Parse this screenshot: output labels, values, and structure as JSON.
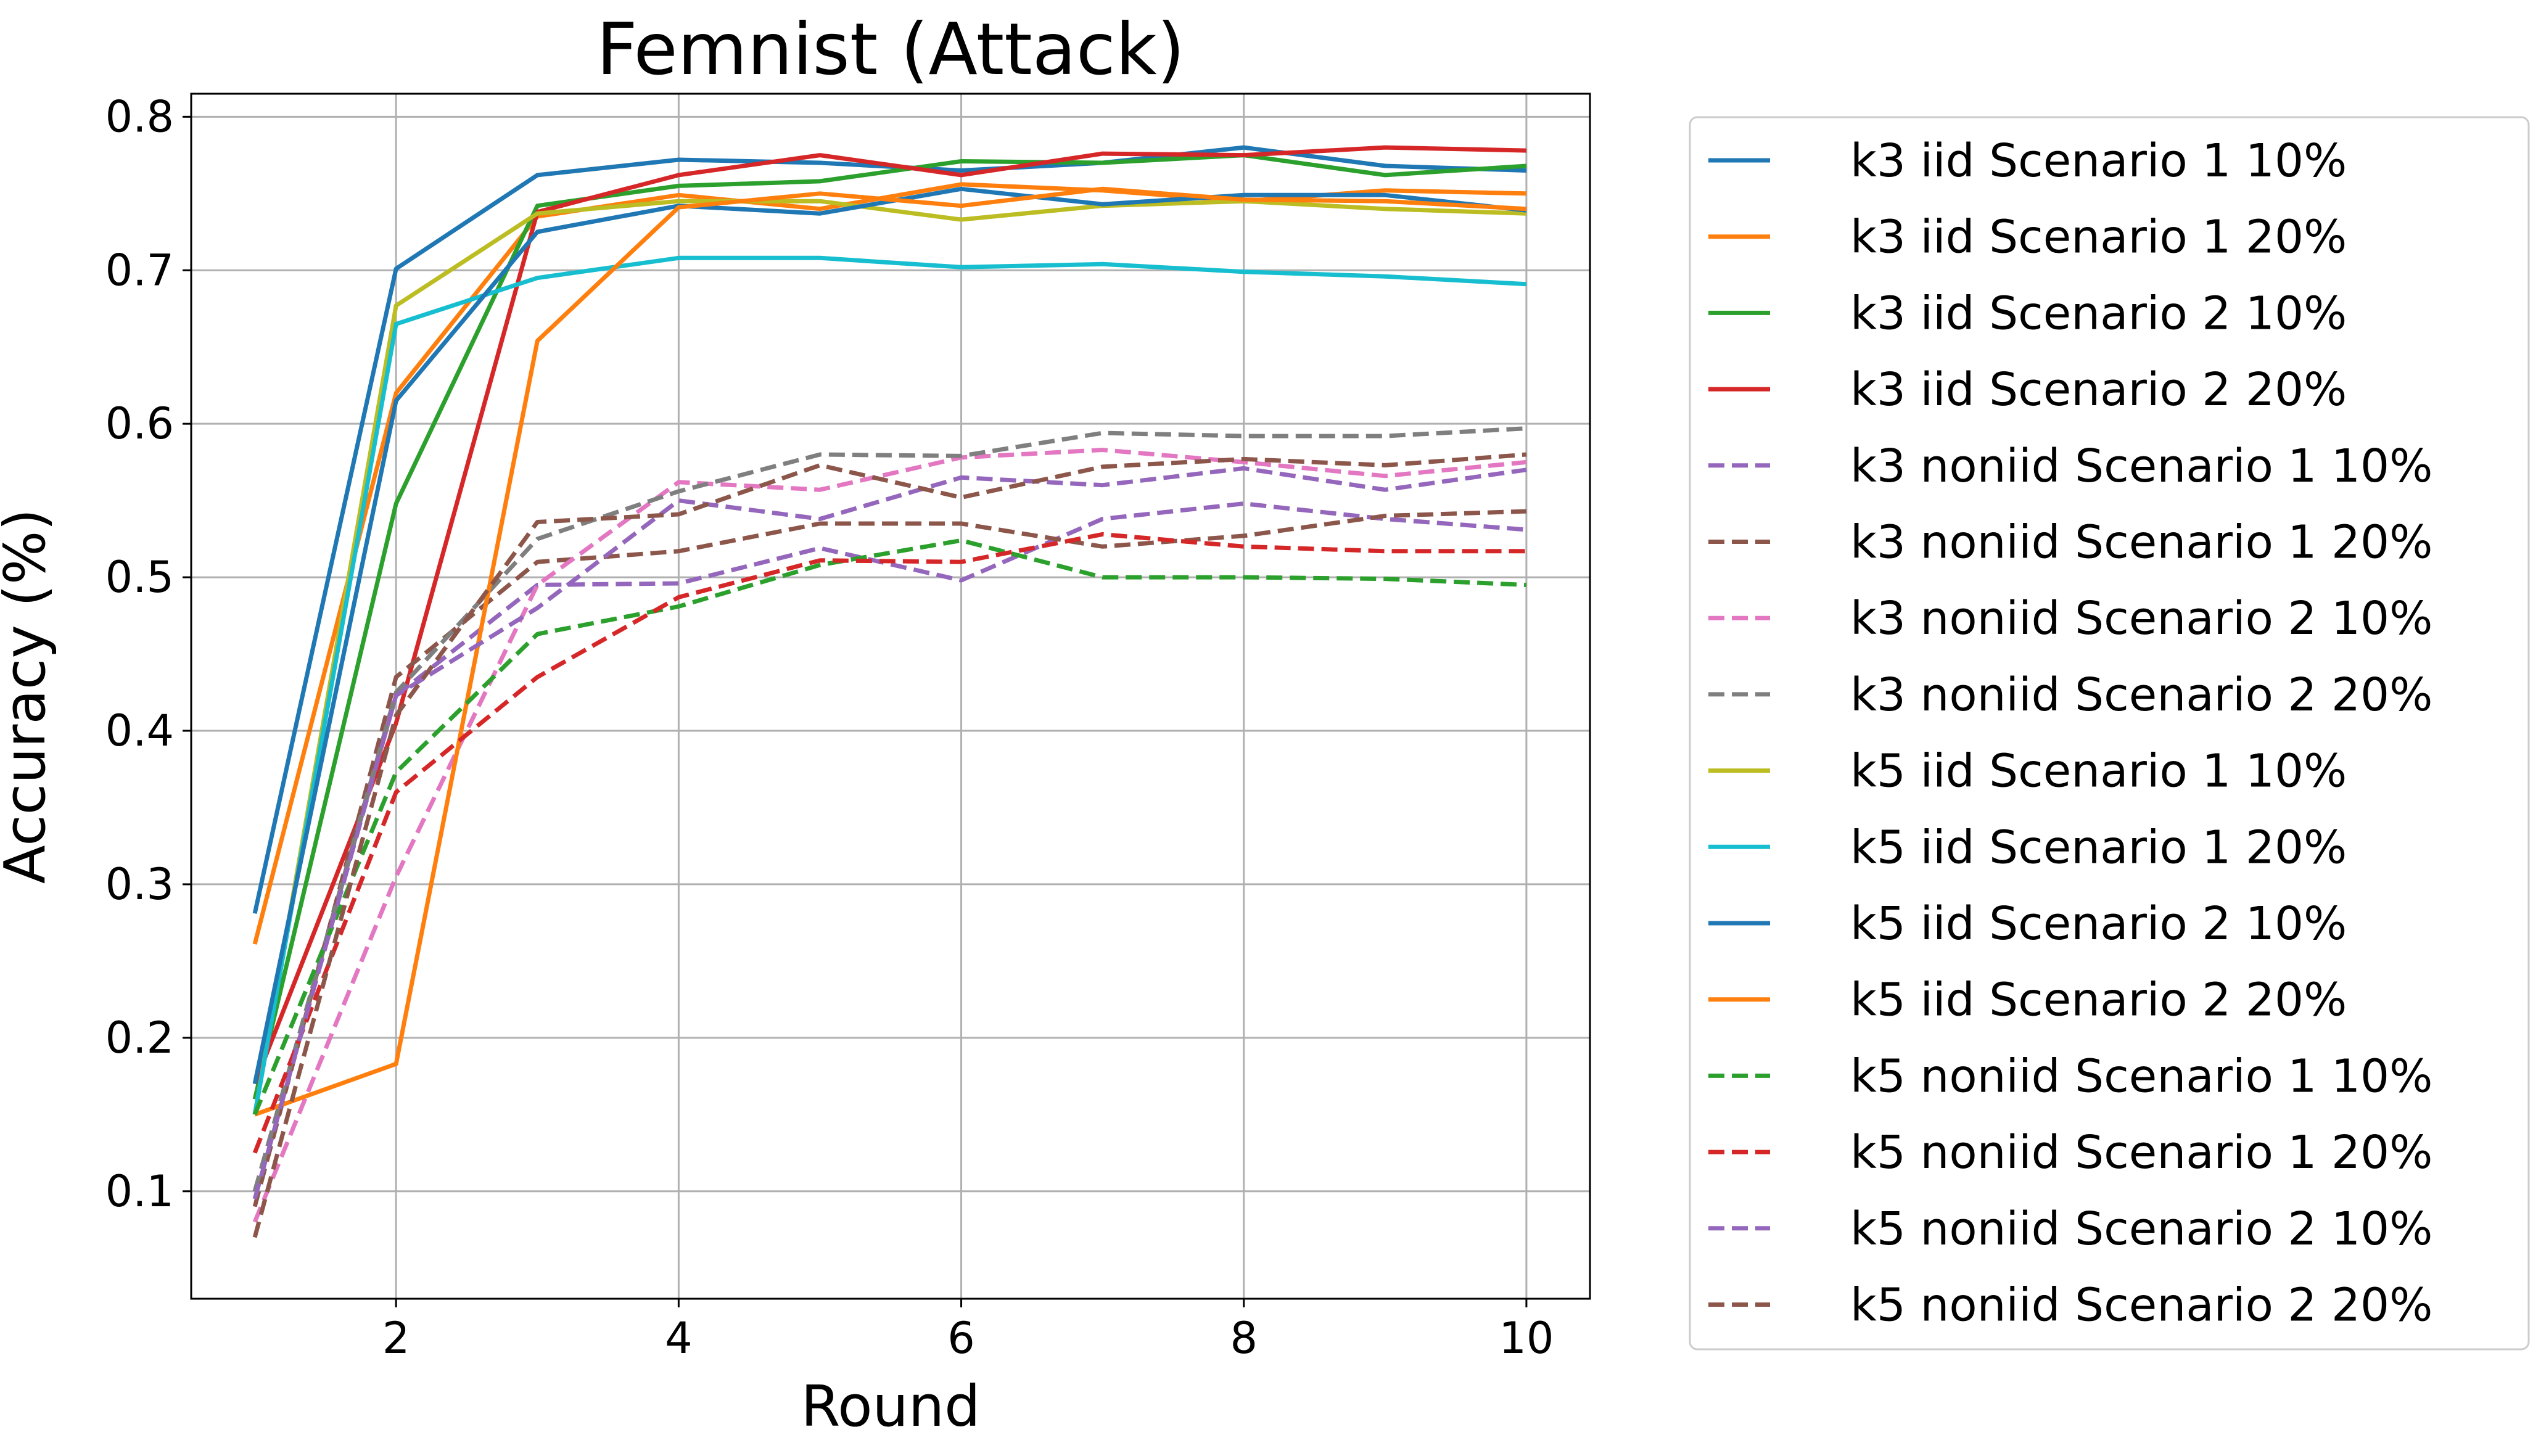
{
  "chart_data": {
    "type": "line",
    "title": "Femnist (Attack)",
    "xlabel": "Round",
    "ylabel": "Accuracy (%)",
    "xlim": [
      0.55,
      10.45
    ],
    "ylim": [
      0.03,
      0.815
    ],
    "xticks": [
      2,
      4,
      6,
      8,
      10
    ],
    "yticks": [
      0.1,
      0.2,
      0.3,
      0.4,
      0.5,
      0.6,
      0.7,
      0.8
    ],
    "grid": true,
    "legend_position": "outside-right",
    "x": [
      1,
      2,
      3,
      4,
      5,
      6,
      7,
      8,
      9,
      10
    ],
    "series": [
      {
        "name": "k3 iid Scenario 1 10%",
        "color": "#1f77b4",
        "dash": "solid",
        "values": [
          0.281,
          0.701,
          0.762,
          0.772,
          0.77,
          0.765,
          0.77,
          0.78,
          0.768,
          0.765
        ]
      },
      {
        "name": "k3 iid Scenario 1 20%",
        "color": "#ff7f0e",
        "dash": "solid",
        "values": [
          0.261,
          0.62,
          0.735,
          0.749,
          0.74,
          0.756,
          0.752,
          0.745,
          0.752,
          0.75
        ]
      },
      {
        "name": "k3 iid Scenario 2 10%",
        "color": "#2ca02c",
        "dash": "solid",
        "values": [
          0.16,
          0.548,
          0.742,
          0.755,
          0.758,
          0.771,
          0.77,
          0.775,
          0.762,
          0.768
        ]
      },
      {
        "name": "k3 iid Scenario 2 20%",
        "color": "#d62728",
        "dash": "solid",
        "values": [
          0.17,
          0.405,
          0.738,
          0.762,
          0.775,
          0.762,
          0.776,
          0.775,
          0.78,
          0.778
        ]
      },
      {
        "name": "k3 noniid Scenario 1 10%",
        "color": "#9467bd",
        "dash": "dashed",
        "values": [
          0.1,
          0.423,
          0.495,
          0.496,
          0.519,
          0.498,
          0.538,
          0.548,
          0.538,
          0.531
        ]
      },
      {
        "name": "k3 noniid Scenario 1 20%",
        "color": "#8c564b",
        "dash": "dashed",
        "values": [
          0.09,
          0.435,
          0.51,
          0.517,
          0.535,
          0.535,
          0.52,
          0.527,
          0.54,
          0.543
        ]
      },
      {
        "name": "k3 noniid Scenario 2 10%",
        "color": "#e377c2",
        "dash": "dashed",
        "values": [
          0.08,
          0.305,
          0.495,
          0.562,
          0.557,
          0.578,
          0.583,
          0.575,
          0.566,
          0.575
        ]
      },
      {
        "name": "k3 noniid Scenario 2 20%",
        "color": "#7f7f7f",
        "dash": "dashed",
        "values": [
          0.1,
          0.425,
          0.525,
          0.556,
          0.58,
          0.579,
          0.594,
          0.592,
          0.592,
          0.597
        ]
      },
      {
        "name": "k5 iid Scenario 1 10%",
        "color": "#bcbd22",
        "dash": "solid",
        "values": [
          0.15,
          0.677,
          0.737,
          0.745,
          0.745,
          0.733,
          0.742,
          0.745,
          0.74,
          0.737
        ]
      },
      {
        "name": "k5 iid Scenario 1 20%",
        "color": "#17becf",
        "dash": "solid",
        "values": [
          0.15,
          0.665,
          0.695,
          0.708,
          0.708,
          0.702,
          0.704,
          0.699,
          0.696,
          0.691
        ]
      },
      {
        "name": "k5 iid Scenario 2 10%",
        "color": "#1f77b4",
        "dash": "solid",
        "values": [
          0.17,
          0.615,
          0.725,
          0.742,
          0.737,
          0.753,
          0.743,
          0.749,
          0.749,
          0.739
        ]
      },
      {
        "name": "k5 iid Scenario 2 20%",
        "color": "#ff7f0e",
        "dash": "solid",
        "values": [
          0.15,
          0.183,
          0.654,
          0.741,
          0.75,
          0.742,
          0.753,
          0.746,
          0.745,
          0.74
        ]
      },
      {
        "name": "k5 noniid Scenario 1 10%",
        "color": "#2ca02c",
        "dash": "dashed",
        "values": [
          0.15,
          0.373,
          0.463,
          0.481,
          0.508,
          0.524,
          0.5,
          0.5,
          0.499,
          0.495
        ]
      },
      {
        "name": "k5 noniid Scenario 1 20%",
        "color": "#d62728",
        "dash": "dashed",
        "values": [
          0.125,
          0.36,
          0.435,
          0.487,
          0.511,
          0.51,
          0.528,
          0.52,
          0.517,
          0.517
        ]
      },
      {
        "name": "k5 noniid Scenario 2 10%",
        "color": "#9467bd",
        "dash": "dashed",
        "values": [
          0.095,
          0.423,
          0.48,
          0.55,
          0.538,
          0.565,
          0.56,
          0.571,
          0.557,
          0.57
        ]
      },
      {
        "name": "k5 noniid Scenario 2 20%",
        "color": "#8c564b",
        "dash": "dashed",
        "values": [
          0.07,
          0.41,
          0.536,
          0.541,
          0.573,
          0.552,
          0.572,
          0.577,
          0.573,
          0.58
        ]
      }
    ]
  }
}
